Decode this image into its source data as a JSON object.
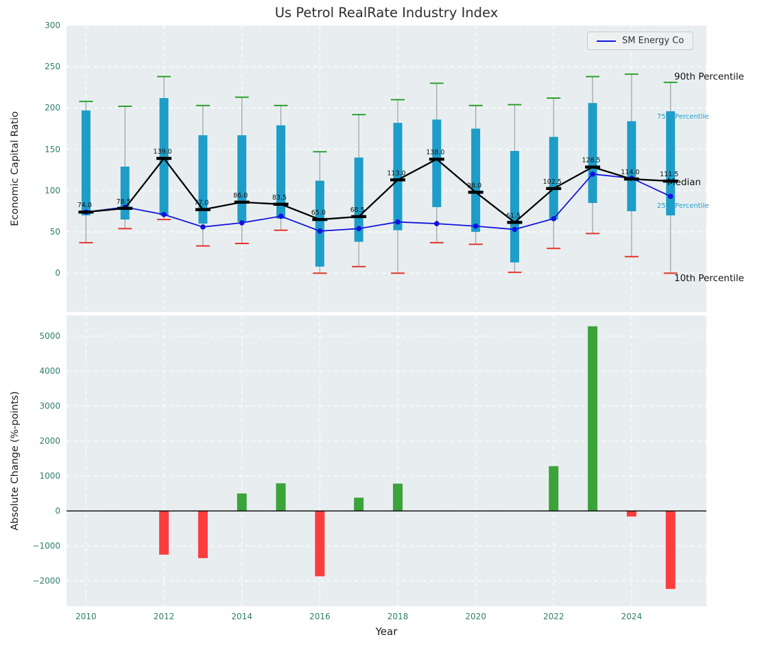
{
  "title": "Us Petrol RealRate Industry Index",
  "legend": {
    "label": "SM Energy Co"
  },
  "axes": {
    "top": {
      "ylabel": "Economic Capital Ratio",
      "yticks": [
        0,
        50,
        100,
        150,
        200,
        250,
        300
      ]
    },
    "bottom": {
      "xlabel": "Year",
      "ylabel": "Absolute Change (%-points)",
      "yticks": [
        -2000,
        -1000,
        0,
        1000,
        2000,
        3000,
        4000,
        5000
      ],
      "xticks": [
        2010,
        2012,
        2014,
        2016,
        2018,
        2020,
        2022,
        2024
      ]
    }
  },
  "annotations": {
    "p90": "90th Percentile",
    "p75": "75th Percentile",
    "median": "Median",
    "p25": "25th Percentile",
    "p10": "10th Percentile"
  },
  "colors": {
    "plot_bg": "#e8eef0",
    "grid": "#ffffff",
    "box": "#1e9dc8",
    "whisker": "#9aa0a3",
    "cap_high": "#2ca02c",
    "cap_low": "#e53228",
    "median": "#000000",
    "company": "#1212dd",
    "bar_up": "#3aa339",
    "bar_down": "#fb3d3d",
    "tick_label": "#2e7d6b",
    "zero_line": "#000000"
  },
  "chart_data": [
    {
      "type": "boxplot+line",
      "title": "Us Petrol RealRate Industry Index",
      "ylabel": "Economic Capital Ratio",
      "ylim": [
        0,
        300
      ],
      "legend_position": "upper right",
      "grid": true,
      "years": [
        2010,
        2011,
        2012,
        2013,
        2014,
        2015,
        2016,
        2017,
        2018,
        2019,
        2020,
        2021,
        2022,
        2023,
        2024,
        2025
      ],
      "p90": [
        208,
        202,
        238,
        203,
        213,
        203,
        147,
        192,
        210,
        230,
        203,
        204,
        212,
        238,
        241,
        231
      ],
      "p75": [
        197,
        129,
        212,
        167,
        167,
        179,
        112,
        140,
        182,
        186,
        175,
        148,
        165,
        206,
        184,
        196
      ],
      "median": [
        74,
        78.5,
        139,
        77,
        86,
        83.5,
        65,
        68.5,
        113,
        138,
        98,
        61.5,
        102.5,
        128.5,
        114,
        111.5
      ],
      "p25": [
        70,
        65,
        70,
        60,
        62,
        66,
        8,
        38,
        52,
        80,
        50,
        13,
        65,
        85,
        75,
        70
      ],
      "p10": [
        37,
        54,
        65,
        33,
        36,
        52,
        0,
        8,
        0,
        37,
        35,
        1,
        30,
        48,
        20,
        0
      ],
      "series": [
        {
          "name": "SM Energy Co",
          "values": [
            74,
            80,
            71,
            56,
            61,
            69,
            51,
            54,
            62,
            60,
            57,
            53,
            66,
            120,
            115,
            93
          ]
        }
      ]
    },
    {
      "type": "bar",
      "ylabel": "Absolute Change (%-points)",
      "xlabel": "Year",
      "ylim": [
        -2725,
        5590
      ],
      "grid": true,
      "x": [
        2010,
        2011,
        2012,
        2013,
        2014,
        2015,
        2016,
        2017,
        2018,
        2019,
        2020,
        2021,
        2022,
        2023,
        2024,
        2025
      ],
      "values": [
        0,
        0,
        -1250,
        -1350,
        500,
        790,
        -1870,
        380,
        780,
        0,
        0,
        0,
        1280,
        5280,
        -160,
        -2230
      ]
    }
  ]
}
